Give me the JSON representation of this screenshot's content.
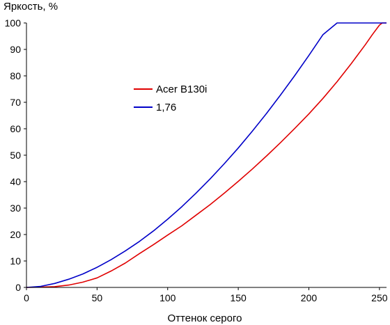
{
  "chart_data": {
    "type": "line",
    "title": "",
    "ylabel": "Яркость, %",
    "xlabel": "Оттенок серого",
    "xlim": [
      0,
      255
    ],
    "ylim": [
      0,
      100
    ],
    "xticks": [
      0,
      50,
      100,
      150,
      200,
      250
    ],
    "yticks": [
      0,
      10,
      20,
      30,
      40,
      50,
      60,
      70,
      80,
      90,
      100
    ],
    "grid": false,
    "legend_position": "middle-left",
    "series": [
      {
        "name": "Acer B130i",
        "color": "#e00000",
        "x": [
          0,
          10,
          20,
          30,
          40,
          50,
          60,
          70,
          80,
          90,
          100,
          110,
          120,
          130,
          140,
          150,
          160,
          170,
          180,
          190,
          200,
          210,
          220,
          230,
          240,
          245,
          250,
          252,
          255
        ],
        "y": [
          0,
          0.1,
          0.3,
          0.9,
          2.0,
          3.6,
          6.2,
          9.2,
          12.8,
          16.2,
          19.8,
          23.3,
          27.3,
          31.3,
          35.6,
          40.1,
          44.8,
          49.7,
          54.8,
          60.1,
          65.6,
          71.5,
          77.8,
          84.6,
          91.8,
          95.6,
          99.2,
          100,
          100
        ]
      },
      {
        "name": "1,76",
        "color": "#0000c8",
        "x": [
          0,
          10,
          20,
          30,
          40,
          50,
          60,
          70,
          80,
          90,
          100,
          110,
          120,
          130,
          140,
          150,
          160,
          170,
          180,
          190,
          200,
          210,
          220,
          230,
          240,
          250,
          255
        ],
        "y": [
          0,
          0.4,
          1.5,
          3.1,
          5.1,
          7.6,
          10.5,
          13.8,
          17.4,
          21.4,
          25.8,
          30.5,
          35.6,
          41.0,
          46.7,
          52.7,
          59.1,
          65.8,
          72.8,
          80.1,
          87.7,
          95.6,
          100,
          100,
          100,
          100,
          100
        ]
      }
    ]
  }
}
